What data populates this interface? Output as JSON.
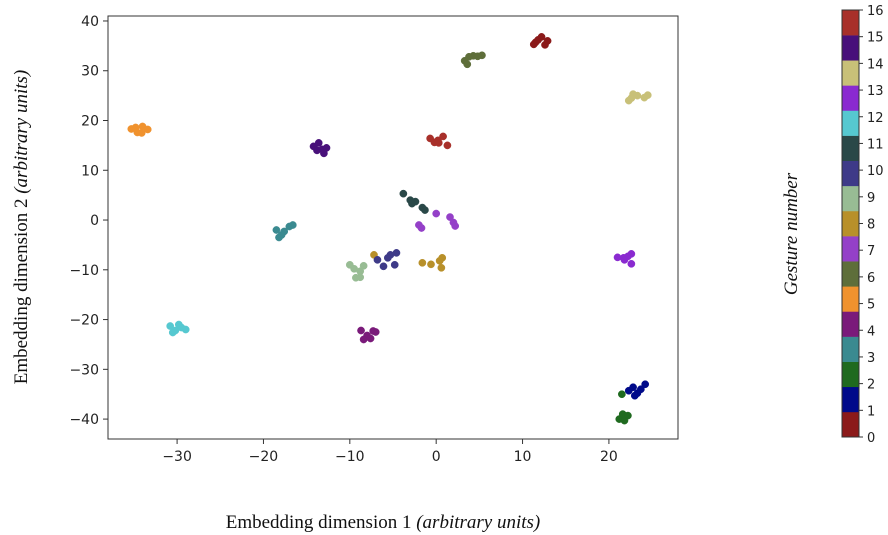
{
  "chart_data": {
    "type": "scatter",
    "xlabel": "Embedding dimension 1",
    "xlabel_suffix": "(arbitrary units)",
    "ylabel": "Embedding dimension 2",
    "ylabel_suffix": "(arbitrary units)",
    "xlim": [
      -38,
      28
    ],
    "ylim": [
      -44,
      41
    ],
    "xticks": [
      -30,
      -20,
      -10,
      0,
      10,
      20
    ],
    "yticks": [
      40,
      30,
      20,
      10,
      0,
      -10,
      -20,
      -30,
      -40
    ],
    "grid": false,
    "colorbar": {
      "title": "Gesture number",
      "ticks": [
        0,
        1,
        2,
        3,
        4,
        5,
        6,
        7,
        8,
        9,
        10,
        11,
        12,
        13,
        14,
        15,
        16
      ],
      "colors": [
        "#8b1a1a",
        "#000a8a",
        "#1f6a1f",
        "#3a8a90",
        "#7a1a7a",
        "#f0922e",
        "#5e6e3a",
        "#9440c8",
        "#b8902a",
        "#98bc94",
        "#3e3a88",
        "#2a4848",
        "#56c8d0",
        "#8a2ad0",
        "#c8c078",
        "#48107a",
        "#a8302a"
      ]
    },
    "series": [
      {
        "gesture": 0,
        "points": [
          [
            11.3,
            35.3
          ],
          [
            11.8,
            36.2
          ],
          [
            12.2,
            36.8
          ],
          [
            12.6,
            35.2
          ],
          [
            11.5,
            35.7
          ],
          [
            12.9,
            36.0
          ]
        ]
      },
      {
        "gesture": 1,
        "points": [
          [
            22.3,
            -34.3
          ],
          [
            22.8,
            -33.6
          ],
          [
            23.3,
            -34.8
          ],
          [
            24.2,
            -33.0
          ],
          [
            23.0,
            -35.3
          ],
          [
            23.7,
            -34.0
          ]
        ]
      },
      {
        "gesture": 2,
        "points": [
          [
            21.2,
            -40.0
          ],
          [
            21.6,
            -39.0
          ],
          [
            22.2,
            -39.3
          ],
          [
            21.8,
            -40.3
          ],
          [
            21.5,
            -35.0
          ]
        ]
      },
      {
        "gesture": 3,
        "points": [
          [
            -18.5,
            -2.0
          ],
          [
            -17.6,
            -2.3
          ],
          [
            -17.0,
            -1.3
          ],
          [
            -17.9,
            -3.0
          ],
          [
            -18.2,
            -3.5
          ],
          [
            -16.6,
            -1.0
          ]
        ]
      },
      {
        "gesture": 4,
        "points": [
          [
            -8.7,
            -22.2
          ],
          [
            -8.0,
            -23.2
          ],
          [
            -7.3,
            -22.3
          ],
          [
            -8.4,
            -24.0
          ],
          [
            -7.6,
            -23.8
          ],
          [
            -7.0,
            -22.5
          ]
        ]
      },
      {
        "gesture": 5,
        "points": [
          [
            -35.3,
            18.3
          ],
          [
            -34.6,
            17.6
          ],
          [
            -34.0,
            18.8
          ],
          [
            -33.4,
            18.2
          ],
          [
            -34.1,
            17.5
          ],
          [
            -34.8,
            18.6
          ]
        ]
      },
      {
        "gesture": 6,
        "points": [
          [
            3.3,
            32.0
          ],
          [
            3.8,
            32.8
          ],
          [
            4.3,
            33.0
          ],
          [
            5.3,
            33.1
          ],
          [
            3.6,
            31.3
          ],
          [
            4.8,
            32.9
          ]
        ]
      },
      {
        "gesture": 7,
        "points": [
          [
            -2.0,
            -1.0
          ],
          [
            -1.7,
            -1.6
          ],
          [
            0.0,
            1.3
          ],
          [
            1.6,
            0.6
          ],
          [
            2.0,
            -0.5
          ],
          [
            2.2,
            -1.2
          ]
        ]
      },
      {
        "gesture": 8,
        "points": [
          [
            -1.6,
            -8.6
          ],
          [
            -0.6,
            -8.9
          ],
          [
            0.4,
            -8.2
          ],
          [
            0.7,
            -7.6
          ],
          [
            0.6,
            -9.6
          ],
          [
            -7.2,
            -7.0
          ]
        ]
      },
      {
        "gesture": 9,
        "points": [
          [
            -10.0,
            -9.0
          ],
          [
            -9.5,
            -9.8
          ],
          [
            -8.8,
            -10.3
          ],
          [
            -9.3,
            -11.6
          ],
          [
            -8.4,
            -9.2
          ],
          [
            -8.8,
            -11.5
          ]
        ]
      },
      {
        "gesture": 10,
        "points": [
          [
            -6.8,
            -8.0
          ],
          [
            -6.1,
            -9.3
          ],
          [
            -5.3,
            -7.0
          ],
          [
            -4.6,
            -6.6
          ],
          [
            -4.8,
            -9.0
          ],
          [
            -5.6,
            -7.6
          ]
        ]
      },
      {
        "gesture": 11,
        "points": [
          [
            -3.8,
            5.3
          ],
          [
            -3.0,
            4.0
          ],
          [
            -2.4,
            3.7
          ],
          [
            -1.6,
            2.5
          ],
          [
            -1.3,
            2.0
          ],
          [
            -2.8,
            3.3
          ]
        ]
      },
      {
        "gesture": 12,
        "points": [
          [
            -30.8,
            -21.3
          ],
          [
            -30.2,
            -22.2
          ],
          [
            -29.5,
            -21.6
          ],
          [
            -29.0,
            -22.0
          ],
          [
            -30.5,
            -22.6
          ],
          [
            -29.8,
            -21.0
          ]
        ]
      },
      {
        "gesture": 13,
        "points": [
          [
            21.0,
            -7.5
          ],
          [
            21.7,
            -7.6
          ],
          [
            22.2,
            -7.3
          ],
          [
            22.6,
            -6.8
          ],
          [
            22.6,
            -8.8
          ],
          [
            21.8,
            -8.0
          ]
        ]
      },
      {
        "gesture": 14,
        "points": [
          [
            22.3,
            24.0
          ],
          [
            22.8,
            25.3
          ],
          [
            23.3,
            25.0
          ],
          [
            24.1,
            24.6
          ],
          [
            24.5,
            25.1
          ],
          [
            22.6,
            24.5
          ]
        ]
      },
      {
        "gesture": 15,
        "points": [
          [
            -14.2,
            14.8
          ],
          [
            -13.6,
            15.5
          ],
          [
            -13.2,
            14.2
          ],
          [
            -12.7,
            14.5
          ],
          [
            -13.0,
            13.4
          ],
          [
            -13.8,
            14.0
          ]
        ]
      },
      {
        "gesture": 16,
        "points": [
          [
            -0.7,
            16.4
          ],
          [
            -0.2,
            15.6
          ],
          [
            0.3,
            15.5
          ],
          [
            0.8,
            16.8
          ],
          [
            1.3,
            15.0
          ],
          [
            0.2,
            16.0
          ]
        ]
      }
    ]
  }
}
